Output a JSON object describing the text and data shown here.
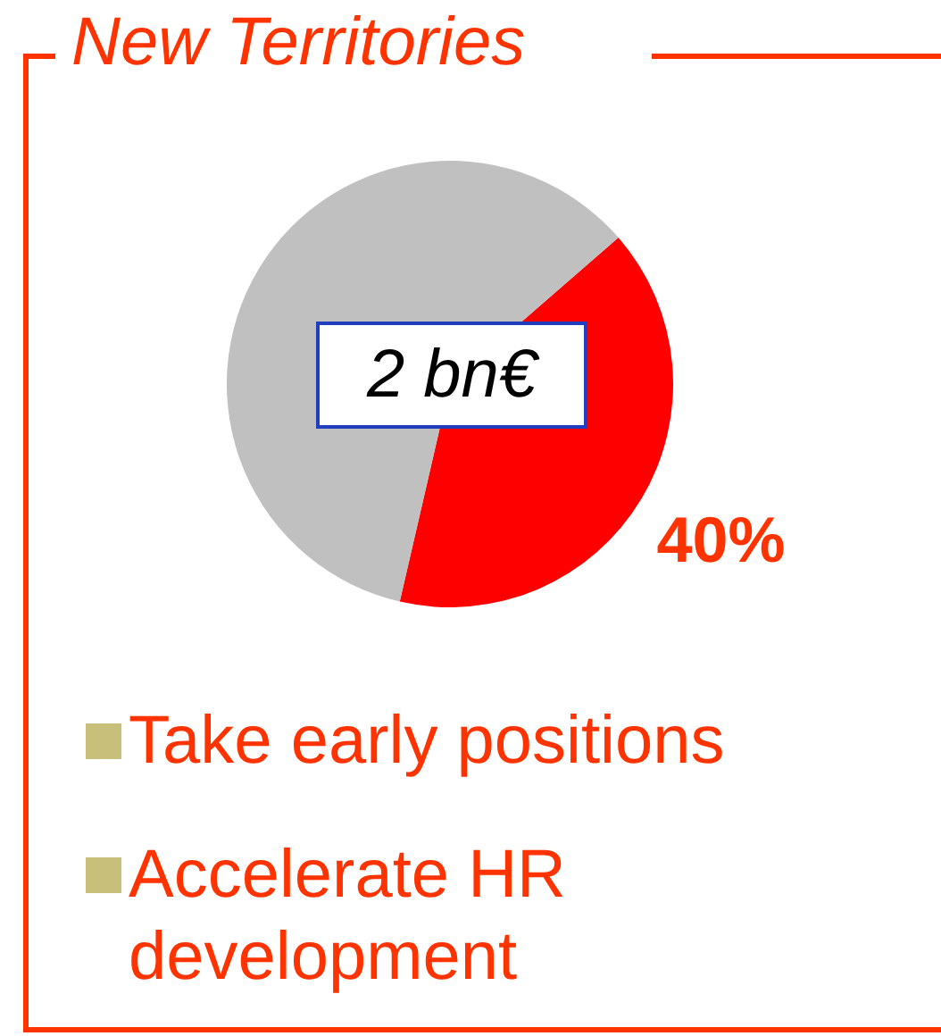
{
  "chart_data": {
    "type": "pie",
    "title": "New Territories",
    "categories": [
      null,
      null
    ],
    "values": [
      40,
      60
    ],
    "colors": [
      "#ff0000",
      "#c0c0c0"
    ],
    "value_labels": [
      "40%",
      null
    ],
    "annotations": [
      "2 bn€",
      "Take early positions",
      "Accelerate HR development"
    ]
  }
}
